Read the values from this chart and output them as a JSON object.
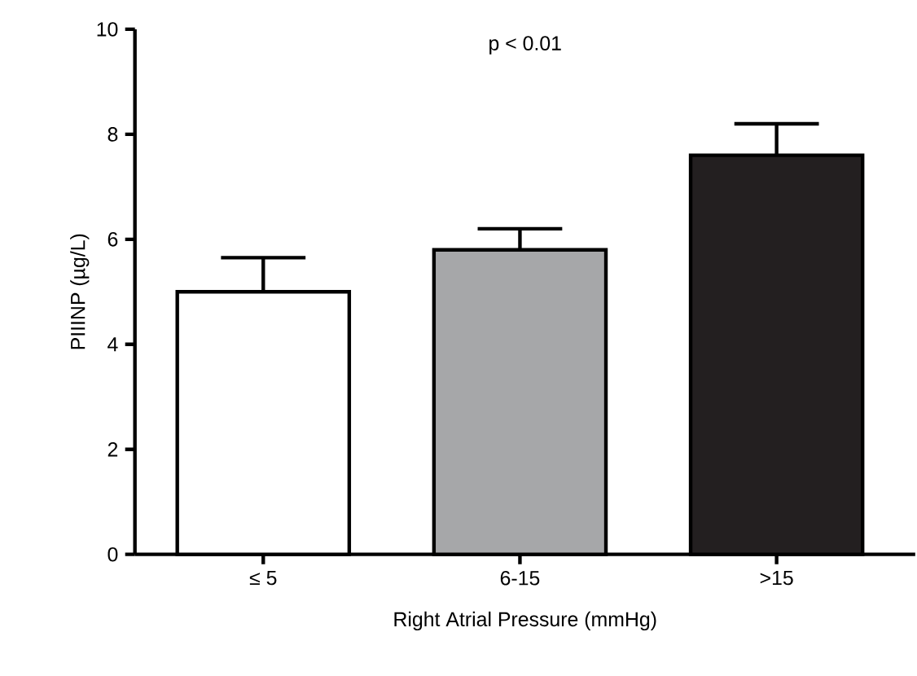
{
  "chart_data": {
    "type": "bar",
    "ylabel": "PIIINP (µg/L)",
    "xlabel": "Right Atrial Pressure (mmHg)",
    "annotations": [
      "p < 0.01"
    ],
    "categories": [
      "≤ 5",
      "6-15",
      ">15"
    ],
    "values": [
      5.0,
      5.8,
      7.6
    ],
    "colors": [
      "#ffffff",
      "#a6a7a9",
      "#231f20"
    ],
    "errors": [
      [
        5.0,
        5.65
      ],
      [
        5.8,
        6.2
      ],
      [
        7.6,
        8.2
      ]
    ],
    "ylim": [
      0,
      10
    ],
    "yticks": [
      0,
      2,
      4,
      6,
      8,
      10
    ],
    "grid": false
  }
}
